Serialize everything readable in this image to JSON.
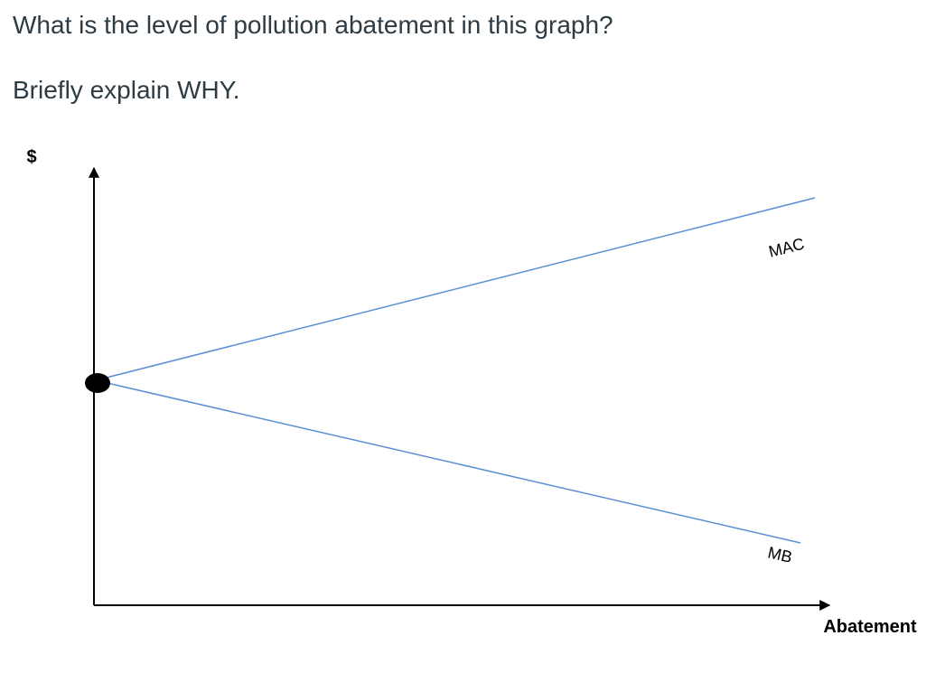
{
  "question": {
    "line1": "What is the level of pollution abatement in this graph?",
    "line2": "Briefly explain WHY."
  },
  "diagram": {
    "y_axis_label": "$",
    "x_axis_label": "Abatement",
    "curves": [
      {
        "label": "MAC"
      },
      {
        "label": "MB"
      }
    ]
  }
}
